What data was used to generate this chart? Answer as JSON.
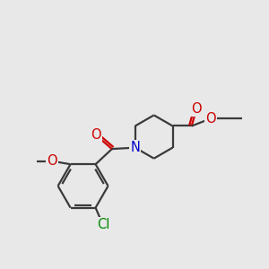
{
  "bg_color": "#e8e8e8",
  "bond_color": "#3a3a3a",
  "N_color": "#0000cc",
  "O_color": "#cc0000",
  "Cl_color": "#008800",
  "line_width": 1.6,
  "font_size": 10.5,
  "fig_size": [
    3.0,
    3.0
  ],
  "dpi": 100,
  "xlim": [
    0,
    10
  ],
  "ylim": [
    0,
    10
  ]
}
